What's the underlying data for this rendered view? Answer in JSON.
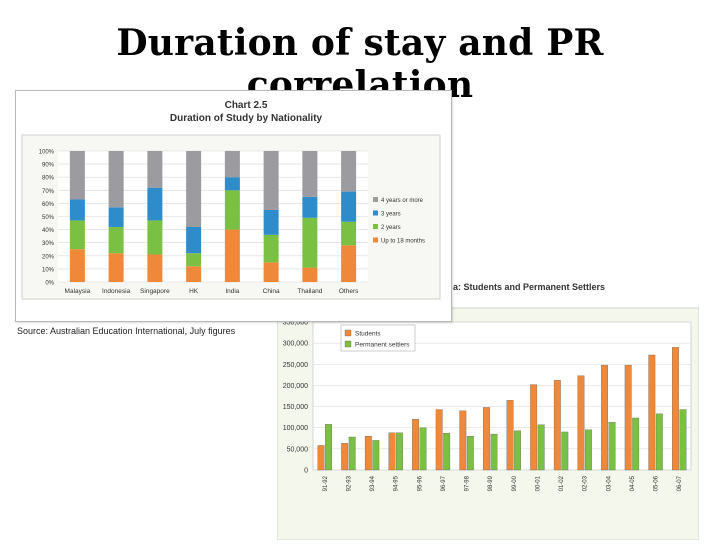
{
  "slide": {
    "title": "Duration of stay and PR correlation"
  },
  "source_note": "Source: Australian Education International, July figures",
  "chart_data": [
    {
      "type": "bar",
      "stacked": true,
      "percent": true,
      "title": "Chart 2.5",
      "subtitle": "Duration of Study by Nationality",
      "categories": [
        "Malaysia",
        "Indonesia",
        "Singapore",
        "HK",
        "India",
        "China",
        "Thailand",
        "Others"
      ],
      "ylim": [
        0,
        100
      ],
      "yticks": [
        "0%",
        "10%",
        "20%",
        "30%",
        "40%",
        "50%",
        "60%",
        "70%",
        "80%",
        "90%",
        "100%"
      ],
      "grid": true,
      "legend_position": "right",
      "series": [
        {
          "name": "Up to 18 months",
          "color": "#f0883a",
          "values": [
            25,
            22,
            21,
            12,
            40,
            15,
            11,
            28
          ]
        },
        {
          "name": "2 years",
          "color": "#7ac143",
          "values": [
            22,
            20,
            26,
            10,
            30,
            21,
            38,
            18
          ]
        },
        {
          "name": "3 years",
          "color": "#2f8ccb",
          "values": [
            16,
            15,
            25,
            20,
            10,
            19,
            16,
            23
          ]
        },
        {
          "name": "4 years or more",
          "color": "#9b9ba0",
          "values": [
            37,
            43,
            28,
            58,
            20,
            45,
            35,
            31
          ]
        }
      ]
    },
    {
      "type": "bar",
      "title_partial": "a: Students and Permanent Settlers",
      "categories": [
        "91-92",
        "92-93",
        "93-94",
        "94-95",
        "95-96",
        "96-97",
        "97-98",
        "98-99",
        "99-00",
        "00-01",
        "01-02",
        "02-03",
        "03-04",
        "04-05",
        "05-06",
        "06-07"
      ],
      "ylim": [
        0,
        350000
      ],
      "yticks": [
        "0",
        "50,000",
        "100,000",
        "150,000",
        "200,000",
        "250,000",
        "300,000",
        "350,000"
      ],
      "grid": true,
      "legend_position": "top-left",
      "series": [
        {
          "name": "Students",
          "color": "#f0883a",
          "values": [
            58000,
            63000,
            80000,
            88000,
            120000,
            143000,
            140000,
            148000,
            165000,
            202000,
            212000,
            223000,
            248000,
            248000,
            272000,
            290000
          ]
        },
        {
          "name": "Permanent settlers",
          "color": "#7ac143",
          "values": [
            108000,
            78000,
            70000,
            88000,
            100000,
            87000,
            80000,
            85000,
            93000,
            107000,
            90000,
            95000,
            113000,
            123000,
            133000,
            143000
          ]
        }
      ]
    }
  ]
}
